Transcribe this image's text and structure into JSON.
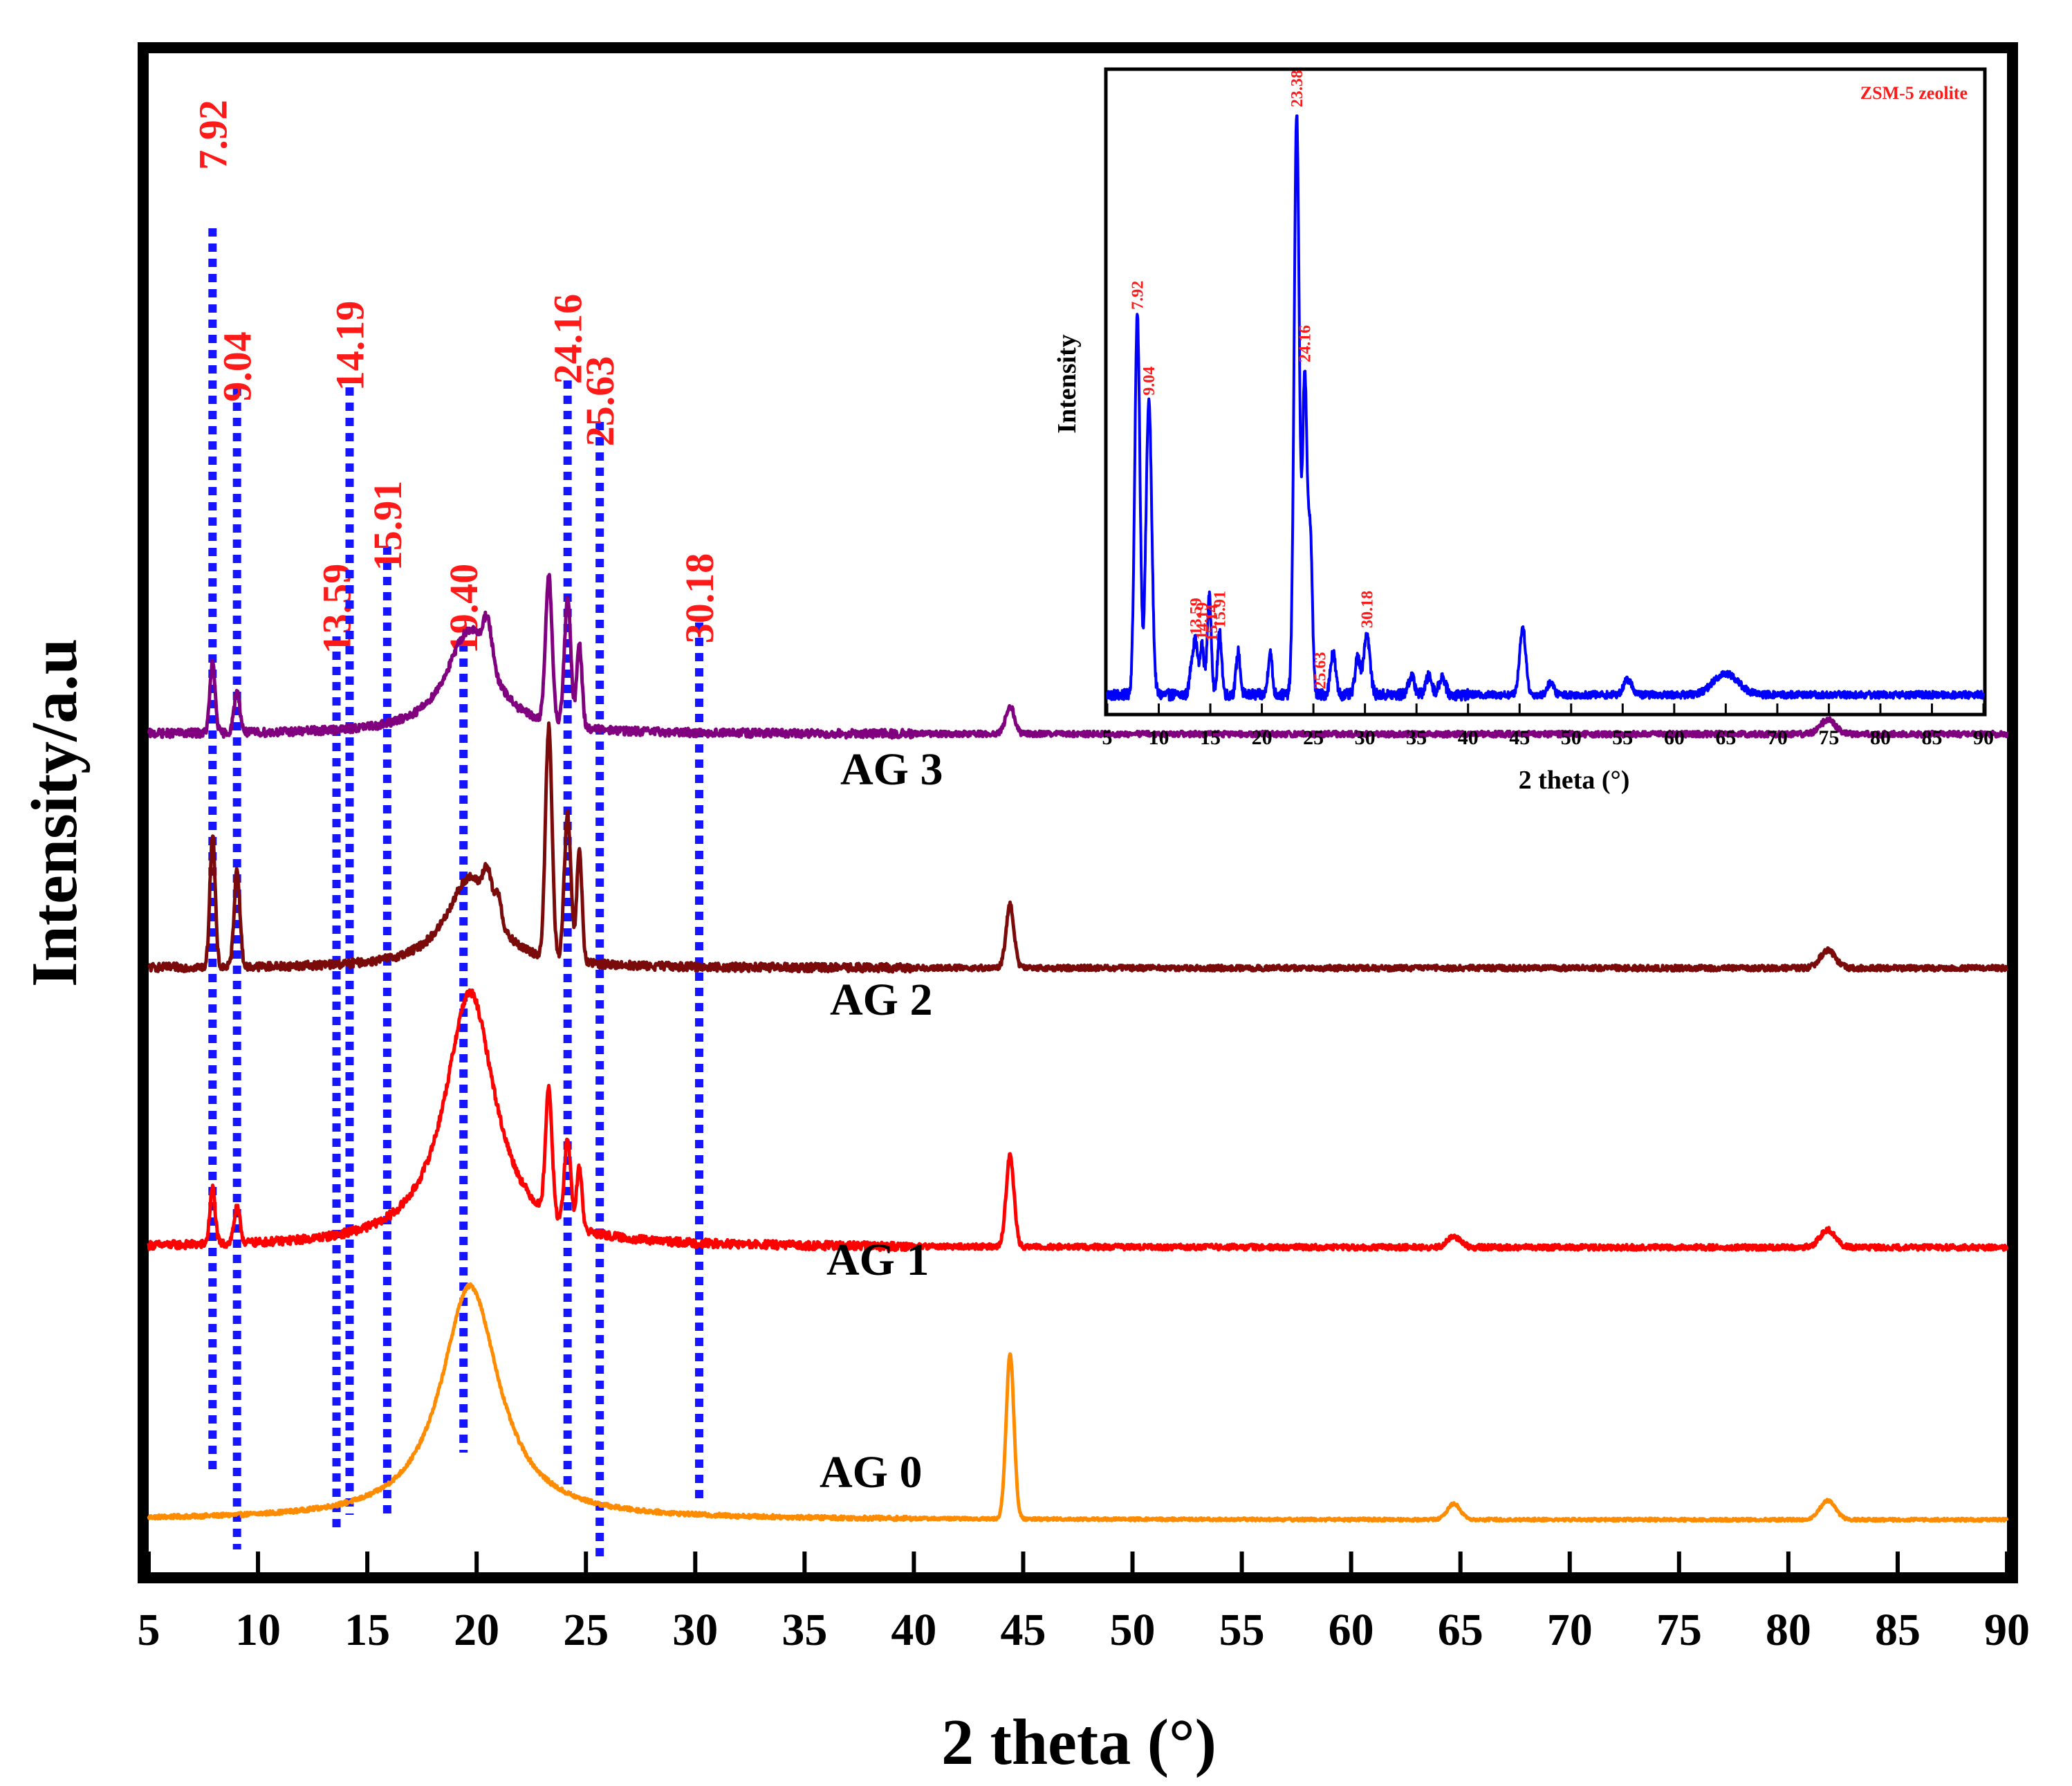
{
  "chart_data": [
    {
      "type": "line",
      "title": "",
      "xlabel": "2 theta (°)",
      "ylabel": "Intensity/a.u",
      "xlim": [
        5,
        90
      ],
      "xticks": [
        5,
        10,
        15,
        20,
        25,
        30,
        35,
        40,
        45,
        50,
        55,
        60,
        65,
        70,
        75,
        80,
        85,
        90
      ],
      "xtick_labels": [
        "5",
        "10",
        "15",
        "20",
        "25",
        "30",
        "35",
        "40",
        "45",
        "50",
        "55",
        "60",
        "65",
        "70",
        "75",
        "80",
        "85",
        "90"
      ],
      "yticks_visible": false,
      "reference_lines": [
        {
          "x": 7.92,
          "label": "7.92"
        },
        {
          "x": 9.04,
          "label": "9.04"
        },
        {
          "x": 13.59,
          "label": "13.59"
        },
        {
          "x": 14.19,
          "label": "14.19"
        },
        {
          "x": 15.91,
          "label": "15.91"
        },
        {
          "x": 19.4,
          "label": "19.40"
        },
        {
          "x": 24.16,
          "label": "24.16"
        },
        {
          "x": 25.63,
          "label": "25.63"
        },
        {
          "x": 30.18,
          "label": "30.18"
        }
      ],
      "series": [
        {
          "name": "AG 0",
          "color": "#ff8c00",
          "baseline": 0.0,
          "noise": 0.004,
          "peaks": [
            {
              "x": 19.7,
              "h": 0.67,
              "w": 1.6,
              "shape": "lorentz"
            },
            {
              "x": 44.4,
              "h": 0.47,
              "w": 0.18
            },
            {
              "x": 64.7,
              "h": 0.045,
              "w": 0.3
            },
            {
              "x": 81.8,
              "h": 0.055,
              "w": 0.35
            }
          ]
        },
        {
          "name": "AG 1",
          "color": "#ff0000",
          "baseline": 0.78,
          "noise": 0.008,
          "peaks": [
            {
              "x": 19.7,
              "h": 0.73,
              "w": 1.4,
              "shape": "lorentz"
            },
            {
              "x": 7.92,
              "h": 0.16,
              "w": 0.12
            },
            {
              "x": 9.04,
              "h": 0.1,
              "w": 0.14
            },
            {
              "x": 23.3,
              "h": 0.36,
              "w": 0.15
            },
            {
              "x": 24.16,
              "h": 0.24,
              "w": 0.15
            },
            {
              "x": 24.7,
              "h": 0.18,
              "w": 0.12
            },
            {
              "x": 44.4,
              "h": 0.26,
              "w": 0.18
            },
            {
              "x": 64.7,
              "h": 0.03,
              "w": 0.3
            },
            {
              "x": 81.8,
              "h": 0.05,
              "w": 0.35
            }
          ]
        },
        {
          "name": "AG 2",
          "color": "#7b0a0a",
          "baseline": 1.58,
          "noise": 0.008,
          "peaks": [
            {
              "x": 19.7,
              "h": 0.26,
              "w": 1.3,
              "shape": "lorentz"
            },
            {
              "x": 7.92,
              "h": 0.38,
              "w": 0.12
            },
            {
              "x": 9.04,
              "h": 0.28,
              "w": 0.13
            },
            {
              "x": 20.5,
              "h": 0.1,
              "w": 0.2
            },
            {
              "x": 21.0,
              "h": 0.08,
              "w": 0.15
            },
            {
              "x": 23.3,
              "h": 0.66,
              "w": 0.15
            },
            {
              "x": 24.16,
              "h": 0.42,
              "w": 0.15
            },
            {
              "x": 24.7,
              "h": 0.32,
              "w": 0.12
            },
            {
              "x": 44.4,
              "h": 0.18,
              "w": 0.18
            },
            {
              "x": 81.8,
              "h": 0.05,
              "w": 0.35
            }
          ]
        },
        {
          "name": "AG 3",
          "color": "#800080",
          "baseline": 2.25,
          "noise": 0.008,
          "peaks": [
            {
              "x": 19.7,
              "h": 0.3,
              "w": 1.3,
              "shape": "lorentz"
            },
            {
              "x": 7.92,
              "h": 0.2,
              "w": 0.12
            },
            {
              "x": 9.04,
              "h": 0.12,
              "w": 0.13
            },
            {
              "x": 20.5,
              "h": 0.12,
              "w": 0.2
            },
            {
              "x": 23.3,
              "h": 0.42,
              "w": 0.15
            },
            {
              "x": 24.16,
              "h": 0.36,
              "w": 0.15
            },
            {
              "x": 24.7,
              "h": 0.24,
              "w": 0.12
            },
            {
              "x": 44.4,
              "h": 0.08,
              "w": 0.2
            },
            {
              "x": 81.8,
              "h": 0.04,
              "w": 0.35
            }
          ]
        }
      ],
      "ylim": [
        -0.15,
        4.2
      ]
    },
    {
      "type": "line",
      "title": "ZSM-5 zeolite",
      "xlabel": "2 theta (°)",
      "ylabel": "Intensity",
      "xlim": [
        5,
        90
      ],
      "ylim": [
        0,
        1.05
      ],
      "xticks": [
        5,
        10,
        15,
        20,
        25,
        30,
        35,
        40,
        45,
        50,
        55,
        60,
        65,
        70,
        75,
        80,
        85,
        90
      ],
      "xtick_labels": [
        "5",
        "10",
        "15",
        "20",
        "25",
        "30",
        "35",
        "40",
        "45",
        "50",
        "55",
        "60",
        "65",
        "70",
        "75",
        "80",
        "85",
        "90"
      ],
      "series": [
        {
          "name": "ZSM-5 zeolite",
          "color": "#0000ff",
          "baseline": 0.03,
          "noise": 0.006,
          "peaks": [
            {
              "x": 7.92,
              "h": 0.62,
              "w": 0.25
            },
            {
              "x": 9.04,
              "h": 0.48,
              "w": 0.28
            },
            {
              "x": 13.2,
              "h": 0.05,
              "w": 0.2
            },
            {
              "x": 13.59,
              "h": 0.08,
              "w": 0.2
            },
            {
              "x": 14.19,
              "h": 0.08,
              "w": 0.2
            },
            {
              "x": 14.9,
              "h": 0.16,
              "w": 0.2
            },
            {
              "x": 15.91,
              "h": 0.1,
              "w": 0.2
            },
            {
              "x": 17.7,
              "h": 0.07,
              "w": 0.2
            },
            {
              "x": 20.8,
              "h": 0.07,
              "w": 0.2
            },
            {
              "x": 23.38,
              "h": 0.95,
              "w": 0.25
            },
            {
              "x": 24.16,
              "h": 0.52,
              "w": 0.22
            },
            {
              "x": 24.7,
              "h": 0.26,
              "w": 0.2
            },
            {
              "x": 26.9,
              "h": 0.07,
              "w": 0.25
            },
            {
              "x": 29.3,
              "h": 0.06,
              "w": 0.25
            },
            {
              "x": 30.18,
              "h": 0.1,
              "w": 0.3
            },
            {
              "x": 34.5,
              "h": 0.03,
              "w": 0.3
            },
            {
              "x": 36.2,
              "h": 0.03,
              "w": 0.3
            },
            {
              "x": 37.5,
              "h": 0.03,
              "w": 0.3
            },
            {
              "x": 45.3,
              "h": 0.11,
              "w": 0.3
            },
            {
              "x": 48.0,
              "h": 0.02,
              "w": 0.3
            },
            {
              "x": 55.5,
              "h": 0.025,
              "w": 0.4
            },
            {
              "x": 65.0,
              "h": 0.035,
              "w": 1.2
            }
          ]
        }
      ],
      "peak_labels": [
        {
          "x": 7.92,
          "label": "7.92"
        },
        {
          "x": 9.04,
          "label": "9.04"
        },
        {
          "x": 13.59,
          "label": "13.59"
        },
        {
          "x": 14.19,
          "label": "14.19"
        },
        {
          "x": 15.14,
          "label": "15.14"
        },
        {
          "x": 15.91,
          "label": "15.91"
        },
        {
          "x": 23.38,
          "label": "23.38"
        },
        {
          "x": 24.16,
          "label": "24.16"
        },
        {
          "x": 25.63,
          "label": "25.63"
        },
        {
          "x": 30.18,
          "label": "30.18"
        }
      ]
    }
  ]
}
